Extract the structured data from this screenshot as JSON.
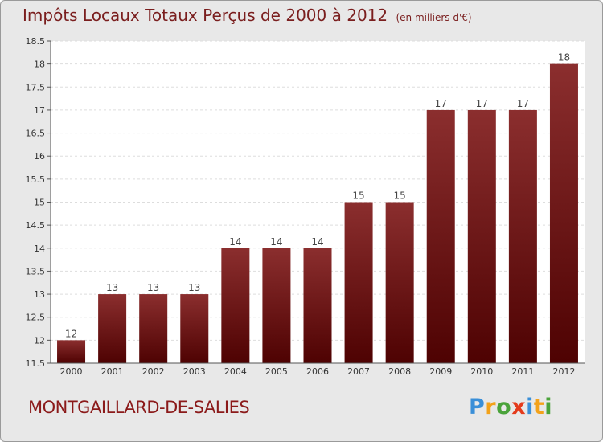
{
  "header": {
    "title": "Impôts Locaux Totaux Perçus de 2000 à 2012",
    "unit": "(en milliers d'€)"
  },
  "footer": {
    "commune": "MONTGAILLARD-DE-SALIES",
    "brand": "Proxiti"
  },
  "colors": {
    "bar_top": "#8b2e2e",
    "bar_bottom": "#4e0202",
    "title": "#7a1e1e",
    "brand_letters": [
      "#3a8fd8",
      "#f3a21a",
      "#4aa33a",
      "#e43b1c",
      "#3a8fd8",
      "#f3a21a",
      "#4aa33a"
    ]
  },
  "chart_data": {
    "type": "bar",
    "title": "Impôts Locaux Totaux Perçus de 2000 à 2012",
    "xlabel": "",
    "ylabel": "en milliers d'€",
    "categories": [
      "2000",
      "2001",
      "2002",
      "2003",
      "2004",
      "2005",
      "2006",
      "2007",
      "2008",
      "2009",
      "2010",
      "2011",
      "2012"
    ],
    "values": [
      12,
      13,
      13,
      13,
      14,
      14,
      14,
      15,
      15,
      17,
      17,
      17,
      18
    ],
    "value_labels": [
      "12",
      "13",
      "13",
      "13",
      "14",
      "14",
      "14",
      "15",
      "15",
      "17",
      "17",
      "17",
      "18"
    ],
    "ylim": [
      11.5,
      18.5
    ],
    "yticks": [
      11.5,
      12,
      12.5,
      13,
      13.5,
      14,
      14.5,
      15,
      15.5,
      16,
      16.5,
      17,
      17.5,
      18,
      18.5
    ],
    "ytick_labels": [
      "11.5",
      "12",
      "12.5",
      "13",
      "13.5",
      "14",
      "14.5",
      "15",
      "15.5",
      "16",
      "16.5",
      "17",
      "17.5",
      "18",
      "18.5"
    ],
    "grid": true
  }
}
